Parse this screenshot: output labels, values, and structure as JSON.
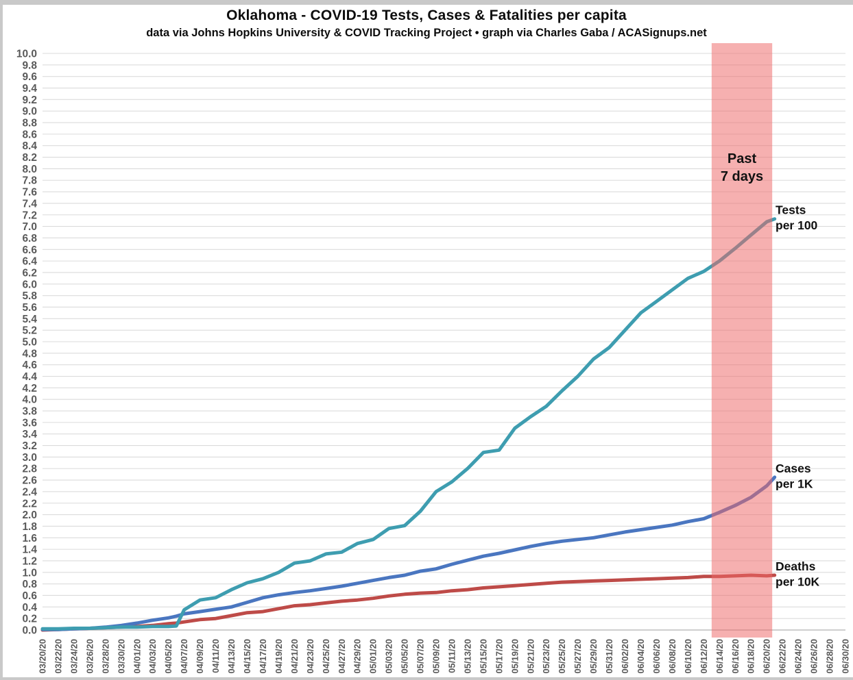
{
  "header": {
    "title": "Oklahoma - COVID-19 Tests, Cases & Fatalities per capita",
    "subtitle": "data via Johns Hopkins University & COVID Tracking Project • graph via Charles Gaba / ACASignups.net"
  },
  "colors": {
    "tests_line": "#3E9DB0",
    "cases_line": "#4A76C0",
    "deaths_line": "#BE4B48",
    "grid": "#DBDBDB",
    "zero_line": "#BDBDBD",
    "tick_text": "#595959",
    "band_fill": "#EE6767",
    "band_opacity": 0.52,
    "annotation_text": "#111111",
    "frame": "#C9C9C9",
    "background": "#FFFFFF"
  },
  "chart_data": {
    "type": "line",
    "title": "Oklahoma - COVID-19 Tests, Cases & Fatalities per capita",
    "subtitle": "data via Johns Hopkins University & COVID Tracking Project • graph via Charles Gaba / ACASignups.net",
    "grid": true,
    "legend_position": "end-of-line annotations",
    "ylim": [
      0,
      10
    ],
    "ytick_step": 0.2,
    "x_range": [
      "03/20/20",
      "06/30/20"
    ],
    "ytick_labels": [
      "10.0",
      "9.8",
      "9.6",
      "9.4",
      "9.2",
      "9.0",
      "8.8",
      "8.6",
      "8.4",
      "8.2",
      "8.0",
      "7.8",
      "7.6",
      "7.4",
      "7.2",
      "7.0",
      "6.8",
      "6.6",
      "6.4",
      "6.2",
      "6.0",
      "5.8",
      "5.6",
      "5.4",
      "5.2",
      "5.0",
      "4.8",
      "4.6",
      "4.4",
      "4.2",
      "4.0",
      "3.8",
      "3.6",
      "3.4",
      "3.2",
      "3.0",
      "2.8",
      "2.6",
      "2.4",
      "2.2",
      "2.0",
      "1.8",
      "1.6",
      "1.4",
      "1.2",
      "1.0",
      "0.8",
      "0.6",
      "0.4",
      "0.2",
      "0.0"
    ],
    "xtick_labels": [
      "03/20/20",
      "03/22/20",
      "03/24/20",
      "03/26/20",
      "03/28/20",
      "03/30/20",
      "04/01/20",
      "04/03/20",
      "04/05/20",
      "04/07/20",
      "04/09/20",
      "04/11/20",
      "04/13/20",
      "04/15/20",
      "04/17/20",
      "04/19/20",
      "04/21/20",
      "04/23/20",
      "04/25/20",
      "04/27/20",
      "04/29/20",
      "05/01/20",
      "05/03/20",
      "05/05/20",
      "05/07/20",
      "05/09/20",
      "05/11/20",
      "05/13/20",
      "05/15/20",
      "05/17/20",
      "05/19/20",
      "05/21/20",
      "05/23/20",
      "05/25/20",
      "05/27/20",
      "05/29/20",
      "05/31/20",
      "06/02/20",
      "06/04/20",
      "06/06/20",
      "06/08/20",
      "06/10/20",
      "06/12/20",
      "06/14/20",
      "06/16/20",
      "06/18/20",
      "06/20/20",
      "06/22/20",
      "06/24/20",
      "06/26/20",
      "06/28/20",
      "06/30/20"
    ],
    "x": [
      "03/20/20",
      "03/22/20",
      "03/24/20",
      "03/26/20",
      "03/28/20",
      "03/30/20",
      "04/01/20",
      "04/03/20",
      "04/05/20",
      "04/06/20",
      "04/07/20",
      "04/09/20",
      "04/11/20",
      "04/13/20",
      "04/15/20",
      "04/17/20",
      "04/19/20",
      "04/21/20",
      "04/23/20",
      "04/25/20",
      "04/27/20",
      "04/29/20",
      "05/01/20",
      "05/03/20",
      "05/05/20",
      "05/07/20",
      "05/09/20",
      "05/11/20",
      "05/13/20",
      "05/15/20",
      "05/17/20",
      "05/19/20",
      "05/21/20",
      "05/23/20",
      "05/25/20",
      "05/27/20",
      "05/29/20",
      "05/31/20",
      "06/02/20",
      "06/04/20",
      "06/06/20",
      "06/08/20",
      "06/10/20",
      "06/12/20",
      "06/14/20",
      "06/16/20",
      "06/18/20",
      "06/20/20",
      "06/21/20"
    ],
    "series": [
      {
        "name": "Tests per 100",
        "annotation": [
          "Tests",
          "per 100"
        ],
        "values": [
          0.02,
          0.02,
          0.03,
          0.03,
          0.04,
          0.05,
          0.05,
          0.06,
          0.06,
          0.07,
          0.35,
          0.52,
          0.56,
          0.7,
          0.82,
          0.89,
          1.0,
          1.16,
          1.2,
          1.32,
          1.35,
          1.5,
          1.57,
          1.76,
          1.81,
          2.06,
          2.4,
          2.57,
          2.8,
          3.08,
          3.12,
          3.5,
          3.7,
          3.88,
          4.15,
          4.4,
          4.7,
          4.9,
          5.2,
          5.5,
          5.7,
          5.9,
          6.1,
          6.22,
          6.4,
          6.62,
          6.85,
          7.08,
          7.13
        ]
      },
      {
        "name": "Cases per 1K",
        "annotation": [
          "Cases",
          "per 1K"
        ],
        "values": [
          0.01,
          0.01,
          0.02,
          0.03,
          0.05,
          0.08,
          0.12,
          0.17,
          0.21,
          0.24,
          0.28,
          0.32,
          0.36,
          0.4,
          0.48,
          0.56,
          0.61,
          0.65,
          0.68,
          0.72,
          0.76,
          0.81,
          0.86,
          0.91,
          0.95,
          1.02,
          1.06,
          1.14,
          1.21,
          1.28,
          1.33,
          1.39,
          1.45,
          1.5,
          1.54,
          1.57,
          1.6,
          1.65,
          1.7,
          1.74,
          1.78,
          1.82,
          1.88,
          1.93,
          2.04,
          2.16,
          2.3,
          2.5,
          2.65
        ]
      },
      {
        "name": "Deaths per 10K",
        "annotation": [
          "Deaths",
          "per 10K"
        ],
        "values": [
          0.0,
          0.01,
          0.02,
          0.03,
          0.04,
          0.05,
          0.06,
          0.08,
          0.11,
          0.12,
          0.14,
          0.18,
          0.2,
          0.25,
          0.3,
          0.32,
          0.37,
          0.42,
          0.44,
          0.47,
          0.5,
          0.52,
          0.55,
          0.59,
          0.62,
          0.64,
          0.65,
          0.68,
          0.7,
          0.73,
          0.75,
          0.77,
          0.79,
          0.81,
          0.83,
          0.84,
          0.85,
          0.86,
          0.87,
          0.88,
          0.89,
          0.9,
          0.91,
          0.93,
          0.93,
          0.94,
          0.95,
          0.94,
          0.95
        ]
      }
    ],
    "highlight_band": {
      "label": [
        "Past",
        "7 days"
      ],
      "from_date": "06/14/20",
      "to_date": "06/21/20"
    }
  }
}
